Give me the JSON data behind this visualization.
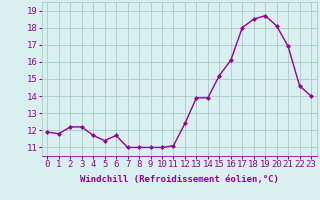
{
  "x": [
    0,
    1,
    2,
    3,
    4,
    5,
    6,
    7,
    8,
    9,
    10,
    11,
    12,
    13,
    14,
    15,
    16,
    17,
    18,
    19,
    20,
    21,
    22,
    23
  ],
  "y": [
    11.9,
    11.8,
    12.2,
    12.2,
    11.7,
    11.4,
    11.7,
    11.0,
    11.0,
    11.0,
    11.0,
    11.1,
    12.4,
    13.9,
    13.9,
    15.2,
    16.1,
    18.0,
    18.5,
    18.7,
    18.1,
    16.9,
    14.6,
    14.0
  ],
  "line_color": "#990099",
  "marker": "D",
  "marker_size": 2,
  "bg_color": "#d8f0f0",
  "grid_color": "#aacccc",
  "xlabel": "Windchill (Refroidissement éolien,°C)",
  "ylabel_values": [
    11,
    12,
    13,
    14,
    15,
    16,
    17,
    18,
    19
  ],
  "ylim": [
    10.5,
    19.5
  ],
  "xlim": [
    -0.5,
    23.5
  ],
  "tick_fontsize": 6.5,
  "xlabel_fontsize": 6.5,
  "linewidth": 1.0
}
